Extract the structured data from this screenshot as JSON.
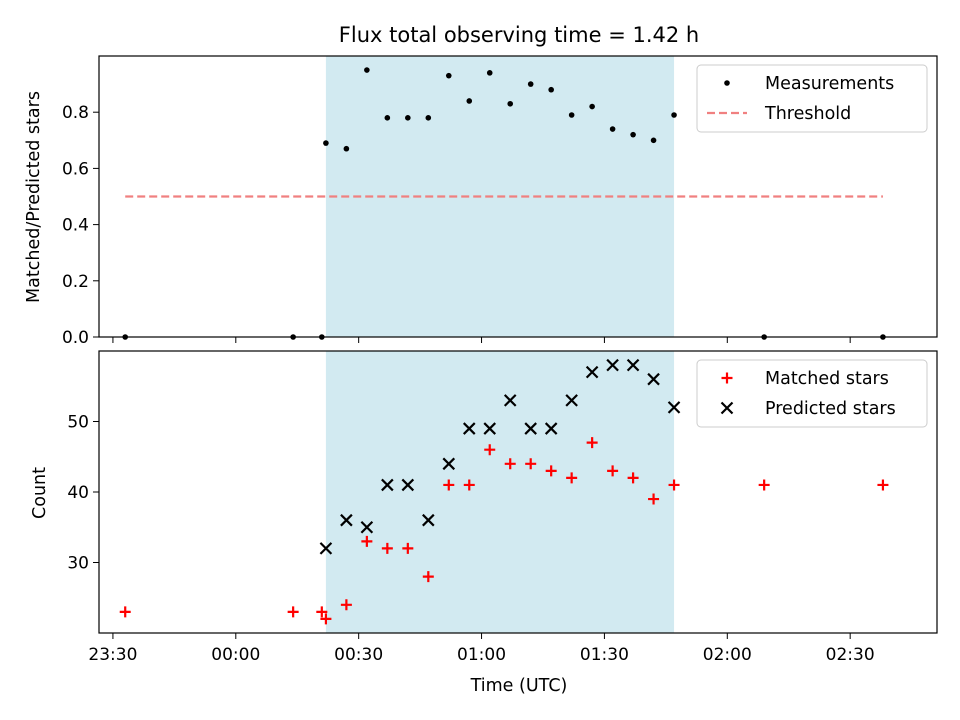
{
  "chart_data": {
    "title": "Flux total observing time = 1.42 h",
    "xlabel": "Time (UTC)",
    "x_tick_labels": [
      "23:30",
      "00:00",
      "00:30",
      "01:00",
      "01:30",
      "02:00",
      "02:30"
    ],
    "highlight_span": {
      "start": "00:22",
      "end": "01:47",
      "color": "#add8e6"
    },
    "panels": [
      {
        "id": "ratio",
        "type": "scatter",
        "ylabel": "Matched/Predicted stars",
        "ylim": [
          0,
          1.0
        ],
        "y_ticks": [
          "0.0",
          "0.2",
          "0.4",
          "0.6",
          "0.8"
        ],
        "legend": {
          "placement": "top-right",
          "entries": [
            "Measurements",
            "Threshold"
          ]
        },
        "series": [
          {
            "name": "Measurements",
            "marker": "dot",
            "color": "#000000",
            "x": [
              "23:33",
              "00:14",
              "00:21",
              "00:22",
              "00:27",
              "00:32",
              "00:37",
              "00:42",
              "00:47",
              "00:52",
              "00:57",
              "01:02",
              "01:07",
              "01:12",
              "01:17",
              "01:22",
              "01:27",
              "01:32",
              "01:37",
              "01:42",
              "01:47",
              "02:09",
              "02:38"
            ],
            "values": [
              0,
              0,
              0,
              0.69,
              0.67,
              0.95,
              0.78,
              0.78,
              0.78,
              0.93,
              0.84,
              0.94,
              0.83,
              0.9,
              0.88,
              0.79,
              0.82,
              0.74,
              0.72,
              0.7,
              0.79,
              0,
              0
            ]
          },
          {
            "name": "Threshold",
            "type": "dashed-line",
            "color": "#f08080",
            "x": [
              "23:33",
              "02:38"
            ],
            "values": [
              0.5,
              0.5
            ]
          }
        ]
      },
      {
        "id": "count",
        "type": "scatter",
        "ylabel": "Count",
        "ylim": [
          20,
          60
        ],
        "y_ticks": [
          "30",
          "40",
          "50"
        ],
        "legend": {
          "placement": "top-right",
          "entries": [
            "Matched stars",
            "Predicted stars"
          ]
        },
        "series": [
          {
            "name": "Matched stars",
            "marker": "plus",
            "color": "#ff0000",
            "x": [
              "23:33",
              "00:14",
              "00:21",
              "00:22",
              "00:27",
              "00:32",
              "00:37",
              "00:42",
              "00:47",
              "00:52",
              "00:57",
              "01:02",
              "01:07",
              "01:12",
              "01:17",
              "01:22",
              "01:27",
              "01:32",
              "01:37",
              "01:42",
              "01:47",
              "02:09",
              "02:38"
            ],
            "values": [
              23,
              23,
              23,
              22,
              24,
              33,
              32,
              32,
              28,
              41,
              41,
              46,
              44,
              44,
              43,
              42,
              47,
              43,
              42,
              39,
              41,
              41,
              41
            ]
          },
          {
            "name": "Predicted stars",
            "marker": "x",
            "color": "#000000",
            "x": [
              "00:22",
              "00:27",
              "00:32",
              "00:37",
              "00:42",
              "00:47",
              "00:52",
              "00:57",
              "01:02",
              "01:07",
              "01:12",
              "01:17",
              "01:22",
              "01:27",
              "01:32",
              "01:37",
              "01:42",
              "01:47"
            ],
            "values": [
              32,
              36,
              35,
              41,
              41,
              36,
              44,
              49,
              49,
              53,
              49,
              49,
              53,
              57,
              58,
              58,
              56,
              52
            ]
          }
        ]
      }
    ]
  }
}
